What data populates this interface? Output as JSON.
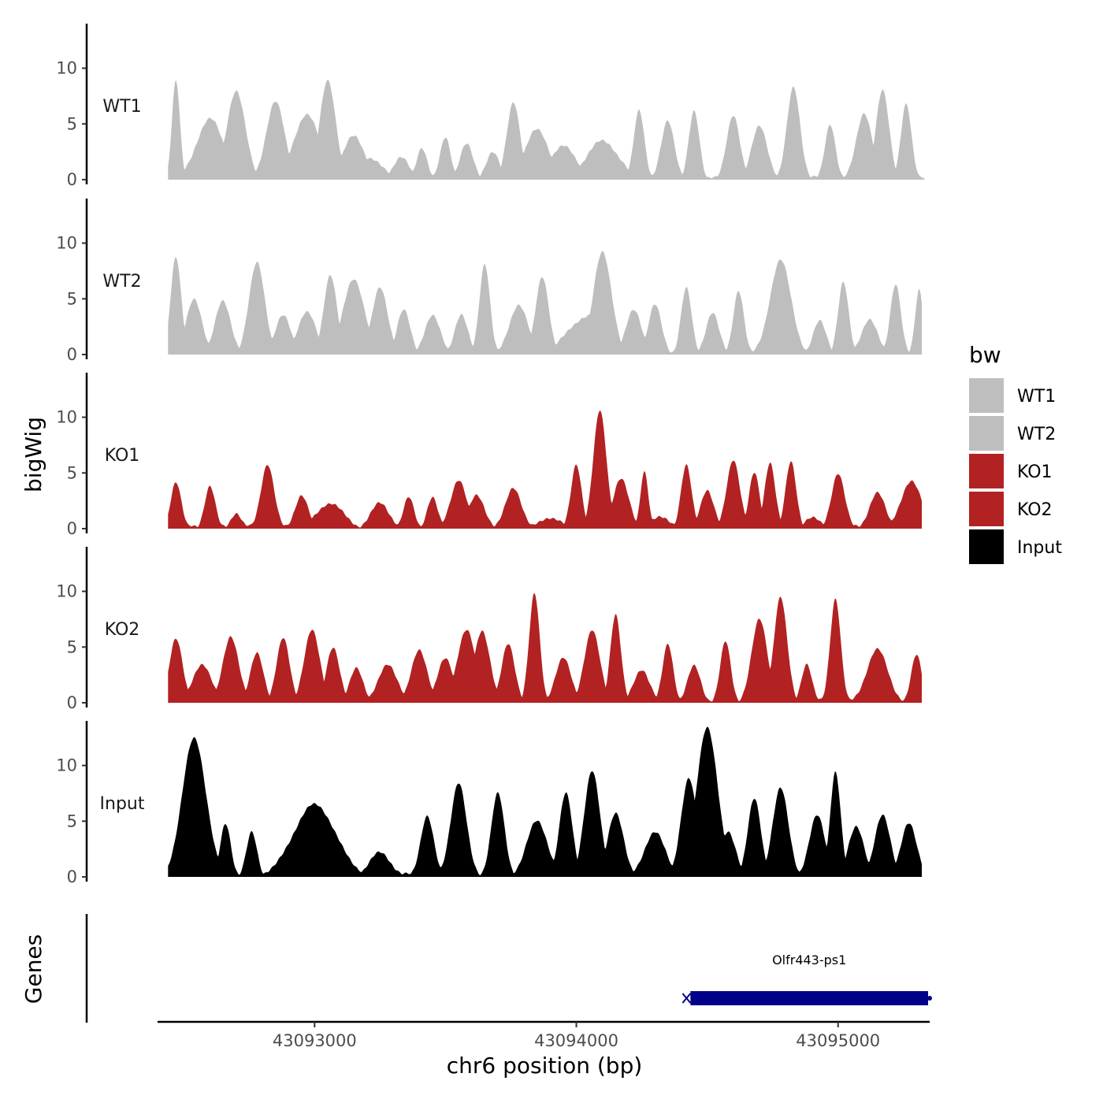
{
  "chart_data": {
    "type": "area",
    "xlabel": "chr6 position (bp)",
    "ylabel": "bigWig",
    "genes_label": "Genes",
    "x_range": [
      43092400,
      43095350
    ],
    "x_ticks": [
      43093000,
      43094000,
      43095000
    ],
    "x_tick_labels": [
      "43093000",
      "43094000",
      "43095000"
    ],
    "y_range": [
      0,
      14
    ],
    "y_ticks": [
      0,
      5,
      10
    ],
    "y_tick_labels": [
      "0",
      "5",
      "10"
    ],
    "legend": {
      "title": "bw",
      "entries": [
        {
          "label": "WT1",
          "color": "#bebebe"
        },
        {
          "label": "WT2",
          "color": "#bebebe"
        },
        {
          "label": "KO1",
          "color": "#b22222"
        },
        {
          "label": "KO2",
          "color": "#b22222"
        },
        {
          "label": "Input",
          "color": "#000000"
        }
      ]
    },
    "series": [
      {
        "name": "WT1",
        "color": "#bebebe",
        "start": 43092440,
        "end": 43095330,
        "peaks": [
          [
            43092470,
            9.0,
            15
          ],
          [
            43092600,
            5.5,
            50
          ],
          [
            43092700,
            8.0,
            35
          ],
          [
            43092850,
            7.0,
            35
          ],
          [
            43092970,
            5.8,
            50
          ],
          [
            43093050,
            9.0,
            30
          ],
          [
            43093150,
            4.0,
            40
          ],
          [
            43093200,
            1.9,
            60
          ],
          [
            43093330,
            2.0,
            30
          ],
          [
            43093410,
            2.9,
            20
          ],
          [
            43093500,
            3.8,
            20
          ],
          [
            43093580,
            3.2,
            25
          ],
          [
            43093680,
            2.5,
            25
          ],
          [
            43093760,
            7.0,
            25
          ],
          [
            43093850,
            4.5,
            45
          ],
          [
            43093950,
            3.0,
            50
          ],
          [
            43094100,
            3.5,
            60
          ],
          [
            43094240,
            6.3,
            20
          ],
          [
            43094350,
            5.3,
            25
          ],
          [
            43094450,
            6.1,
            20
          ],
          [
            43094600,
            5.8,
            25
          ],
          [
            43094700,
            4.8,
            30
          ],
          [
            43094830,
            8.3,
            25
          ],
          [
            43094970,
            5.0,
            20
          ],
          [
            43095100,
            6.0,
            30
          ],
          [
            43095170,
            8.0,
            25
          ],
          [
            43095260,
            6.8,
            20
          ]
        ]
      },
      {
        "name": "WT2",
        "color": "#bebebe",
        "start": 43092440,
        "end": 43095320,
        "peaks": [
          [
            43092470,
            8.8,
            20
          ],
          [
            43092540,
            5.0,
            30
          ],
          [
            43092650,
            4.8,
            30
          ],
          [
            43092780,
            8.3,
            30
          ],
          [
            43092880,
            3.5,
            30
          ],
          [
            43092970,
            3.8,
            35
          ],
          [
            43093060,
            7.2,
            25
          ],
          [
            43093150,
            6.8,
            40
          ],
          [
            43093250,
            6.0,
            30
          ],
          [
            43093340,
            4.0,
            25
          ],
          [
            43093450,
            3.5,
            30
          ],
          [
            43093560,
            3.6,
            25
          ],
          [
            43093650,
            8.2,
            20
          ],
          [
            43093780,
            4.5,
            35
          ],
          [
            43093870,
            7.0,
            25
          ],
          [
            43094050,
            3.5,
            80
          ],
          [
            43094100,
            9.2,
            35
          ],
          [
            43094220,
            4.0,
            30
          ],
          [
            43094300,
            4.5,
            25
          ],
          [
            43094420,
            6.0,
            20
          ],
          [
            43094520,
            3.8,
            25
          ],
          [
            43094620,
            5.8,
            20
          ],
          [
            43094780,
            8.5,
            40
          ],
          [
            43094930,
            3.0,
            25
          ],
          [
            43095020,
            6.5,
            20
          ],
          [
            43095120,
            3.2,
            30
          ],
          [
            43095220,
            6.4,
            20
          ],
          [
            43095310,
            5.8,
            15
          ]
        ]
      },
      {
        "name": "KO1",
        "color": "#b22222",
        "start": 43092440,
        "end": 43095320,
        "peaks": [
          [
            43092470,
            4.2,
            20
          ],
          [
            43092600,
            3.8,
            20
          ],
          [
            43092700,
            1.4,
            20
          ],
          [
            43092820,
            5.8,
            25
          ],
          [
            43092950,
            3.0,
            25
          ],
          [
            43093060,
            2.3,
            50
          ],
          [
            43093250,
            2.3,
            35
          ],
          [
            43093360,
            2.8,
            20
          ],
          [
            43093450,
            2.8,
            20
          ],
          [
            43093550,
            4.4,
            30
          ],
          [
            43093620,
            3.0,
            30
          ],
          [
            43093760,
            3.7,
            30
          ],
          [
            43093900,
            1.0,
            40
          ],
          [
            43094000,
            5.8,
            20
          ],
          [
            43094090,
            10.6,
            25
          ],
          [
            43094170,
            4.5,
            30
          ],
          [
            43094260,
            5.2,
            15
          ],
          [
            43094320,
            1.0,
            40
          ],
          [
            43094420,
            5.7,
            20
          ],
          [
            43094500,
            3.5,
            25
          ],
          [
            43094600,
            6.2,
            25
          ],
          [
            43094680,
            5.0,
            20
          ],
          [
            43094740,
            6.0,
            20
          ],
          [
            43094820,
            6.0,
            20
          ],
          [
            43094900,
            1.0,
            30
          ],
          [
            43095000,
            5.0,
            25
          ],
          [
            43095150,
            3.2,
            30
          ],
          [
            43095280,
            4.2,
            40
          ]
        ]
      },
      {
        "name": "KO2",
        "color": "#b22222",
        "start": 43092440,
        "end": 43095320,
        "peaks": [
          [
            43092470,
            5.8,
            25
          ],
          [
            43092570,
            3.5,
            35
          ],
          [
            43092680,
            6.0,
            30
          ],
          [
            43092780,
            4.5,
            25
          ],
          [
            43092880,
            5.8,
            25
          ],
          [
            43092990,
            6.5,
            30
          ],
          [
            43093070,
            5.0,
            25
          ],
          [
            43093160,
            3.2,
            25
          ],
          [
            43093280,
            3.5,
            35
          ],
          [
            43093400,
            4.8,
            30
          ],
          [
            43093500,
            4.0,
            30
          ],
          [
            43093580,
            6.5,
            35
          ],
          [
            43093640,
            6.5,
            30
          ],
          [
            43093740,
            5.3,
            25
          ],
          [
            43093840,
            9.8,
            20
          ],
          [
            43093950,
            4.0,
            30
          ],
          [
            43094060,
            6.5,
            30
          ],
          [
            43094150,
            8.0,
            20
          ],
          [
            43094250,
            3.0,
            30
          ],
          [
            43094350,
            5.3,
            20
          ],
          [
            43094450,
            3.3,
            25
          ],
          [
            43094570,
            5.5,
            20
          ],
          [
            43094700,
            7.5,
            30
          ],
          [
            43094780,
            9.5,
            25
          ],
          [
            43094880,
            3.5,
            20
          ],
          [
            43094990,
            9.4,
            20
          ],
          [
            43095150,
            4.8,
            40
          ],
          [
            43095300,
            4.3,
            20
          ]
        ]
      },
      {
        "name": "Input",
        "color": "#000000",
        "start": 43092440,
        "end": 43095320,
        "peaks": [
          [
            43092540,
            12.5,
            45
          ],
          [
            43092660,
            4.8,
            20
          ],
          [
            43092760,
            4.0,
            20
          ],
          [
            43093000,
            6.5,
            80
          ],
          [
            43093250,
            2.2,
            40
          ],
          [
            43093430,
            5.5,
            25
          ],
          [
            43093550,
            8.5,
            30
          ],
          [
            43093700,
            7.5,
            25
          ],
          [
            43093850,
            5.0,
            40
          ],
          [
            43093960,
            7.5,
            25
          ],
          [
            43094060,
            9.5,
            30
          ],
          [
            43094150,
            5.8,
            30
          ],
          [
            43094300,
            4.0,
            40
          ],
          [
            43094430,
            8.8,
            30
          ],
          [
            43094500,
            13.5,
            40
          ],
          [
            43094580,
            4.0,
            30
          ],
          [
            43094680,
            7.0,
            25
          ],
          [
            43094780,
            8.0,
            30
          ],
          [
            43094920,
            5.5,
            30
          ],
          [
            43094990,
            9.5,
            20
          ],
          [
            43095070,
            4.5,
            30
          ],
          [
            43095170,
            5.5,
            30
          ],
          [
            43095270,
            4.8,
            30
          ]
        ]
      }
    ],
    "genes": [
      {
        "name": "Olfr443-ps1",
        "start": 43094430,
        "end": 43095350,
        "strand": "-",
        "color": "#00008b"
      }
    ]
  }
}
